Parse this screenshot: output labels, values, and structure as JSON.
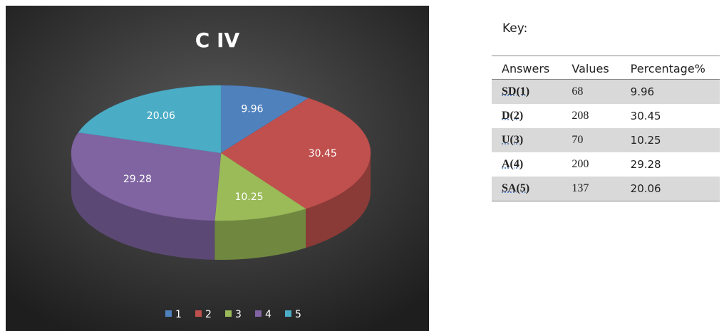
{
  "chart_data": {
    "type": "pie",
    "title": "C IV",
    "categories": [
      "1",
      "2",
      "3",
      "4",
      "5"
    ],
    "values": [
      9.96,
      30.45,
      10.25,
      29.28,
      20.06
    ],
    "colors": [
      "#4f81bd",
      "#c0504d",
      "#9bbb59",
      "#8064a2",
      "#4bacc6"
    ],
    "legend": "bottom"
  },
  "key": {
    "title": "Key:",
    "header": [
      "Answers",
      "Values",
      "Percentage%"
    ],
    "rows": [
      [
        "SD(1)",
        68,
        9.96
      ],
      [
        "D(2)",
        208,
        30.45
      ],
      [
        "U(3)",
        70,
        10.25
      ],
      [
        "A(4)",
        200,
        29.28
      ],
      [
        "SA(5)",
        137,
        20.06
      ]
    ]
  }
}
